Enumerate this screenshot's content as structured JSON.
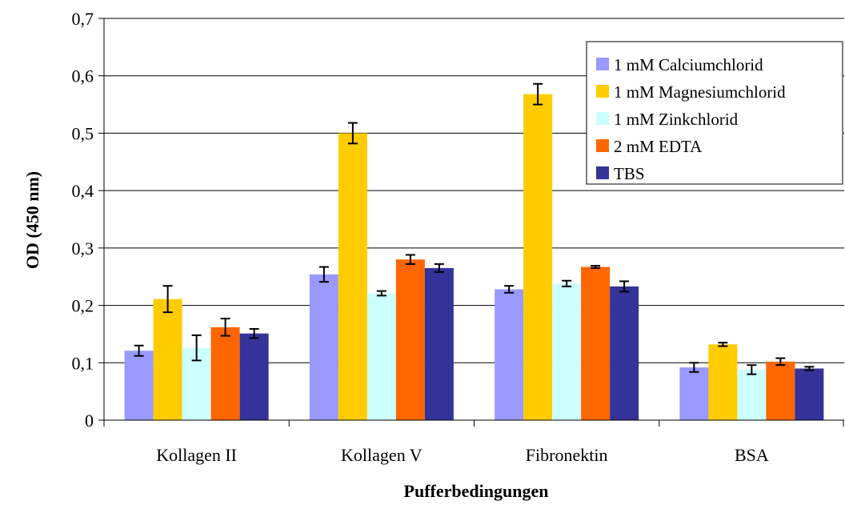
{
  "chart_data": {
    "type": "bar",
    "xlabel": "Pufferbedingungen",
    "ylabel": "OD (450 nm)",
    "ylim": [
      0,
      0.7
    ],
    "yticks": [
      "0",
      "0,1",
      "0,2",
      "0,3",
      "0,4",
      "0,5",
      "0,6",
      "0,7"
    ],
    "ytick_values": [
      0,
      0.1,
      0.2,
      0.3,
      0.4,
      0.5,
      0.6,
      0.7
    ],
    "grid": "horizontal",
    "legend_position": "top-right",
    "categories": [
      "Kollagen II",
      "Kollagen V",
      "Fibronektin",
      "BSA"
    ],
    "series": [
      {
        "name": "1 mM Calciumchlorid",
        "color": "#9999ff",
        "values": [
          0.121,
          0.254,
          0.228,
          0.092
        ],
        "errors": [
          0.009,
          0.013,
          0.006,
          0.008
        ]
      },
      {
        "name": "1 mM Magnesiumchlorid",
        "color": "#ffcc00",
        "values": [
          0.211,
          0.5,
          0.568,
          0.132
        ],
        "errors": [
          0.023,
          0.018,
          0.018,
          0.003
        ]
      },
      {
        "name": "1 mM Zinkchlorid",
        "color": "#ccffff",
        "values": [
          0.126,
          0.221,
          0.238,
          0.088
        ],
        "errors": [
          0.022,
          0.004,
          0.005,
          0.008
        ]
      },
      {
        "name": "2 mM EDTA",
        "color": "#ff6600",
        "values": [
          0.162,
          0.28,
          0.267,
          0.102
        ],
        "errors": [
          0.015,
          0.008,
          0.002,
          0.006
        ]
      },
      {
        "name": "TBS",
        "color": "#333399",
        "values": [
          0.151,
          0.265,
          0.233,
          0.09
        ],
        "errors": [
          0.008,
          0.007,
          0.009,
          0.003
        ]
      }
    ]
  }
}
